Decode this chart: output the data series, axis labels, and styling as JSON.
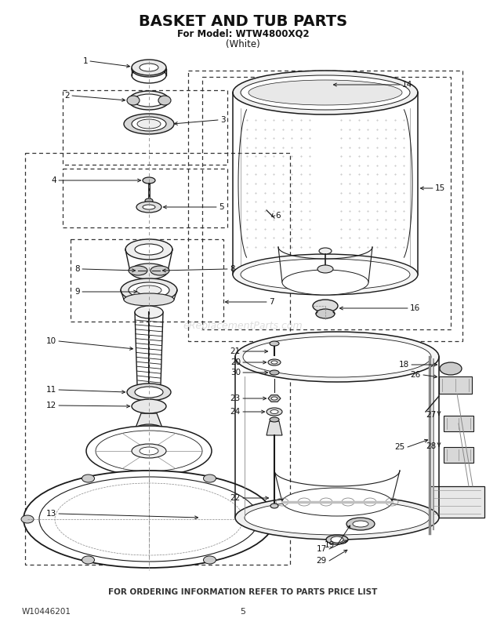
{
  "title": "BASKET AND TUB PARTS",
  "subtitle": "For Model: WTW4800XQ2",
  "subtitle2": "(White)",
  "footer_text": "FOR ORDERING INFORMATION REFER TO PARTS PRICE LIST",
  "doc_number": "W10446201",
  "page_number": "5",
  "bg_color": "#ffffff",
  "lc": "#1a1a1a",
  "gray": "#888888",
  "lgray": "#cccccc",
  "watermark": "eReplacementParts.com",
  "figw": 6.2,
  "figh": 8.02,
  "dpi": 100
}
